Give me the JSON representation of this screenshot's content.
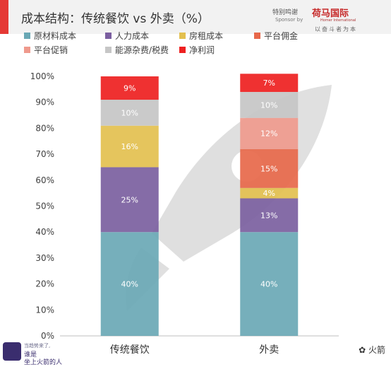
{
  "header": {
    "title": "成本结构：传统餐饮 vs 外卖（%）",
    "sponsor_text": "特别鸣谢",
    "sponsor_sub": "Sponsor by",
    "sponsor_logo": "荷马国际",
    "sponsor_logo_sub": "Homer International",
    "sponsor_tag": "以奋斗者为本"
  },
  "legend": [
    {
      "label": "原材料成本",
      "color": "#6aa8b5"
    },
    {
      "label": "人力成本",
      "color": "#7b5fa0"
    },
    {
      "label": "房租成本",
      "color": "#e3c04f"
    },
    {
      "label": "平台佣金",
      "color": "#e7684a"
    },
    {
      "label": "平台促销",
      "color": "#ef9a8d"
    },
    {
      "label": "能源杂费/税费",
      "color": "#c6c6c6"
    },
    {
      "label": "净利润",
      "color": "#ee2020"
    }
  ],
  "chart_data": {
    "type": "bar",
    "stacked": true,
    "title": "成本结构：传统餐饮 vs 外卖（%）",
    "categories": [
      "传统餐饮",
      "外卖"
    ],
    "ylim": [
      0,
      100
    ],
    "yticks": [
      "0%",
      "10%",
      "20%",
      "30%",
      "40%",
      "50%",
      "60%",
      "70%",
      "80%",
      "90%",
      "100%"
    ],
    "series": [
      {
        "name": "原材料成本",
        "color": "#6aa8b5",
        "values": [
          40,
          40
        ],
        "labels": [
          "40%",
          "40%"
        ]
      },
      {
        "name": "人力成本",
        "color": "#7b5fa0",
        "values": [
          25,
          13
        ],
        "labels": [
          "25%",
          "13%"
        ]
      },
      {
        "name": "房租成本",
        "color": "#e3c04f",
        "values": [
          16,
          4
        ],
        "labels": [
          "16%",
          "4%"
        ]
      },
      {
        "name": "平台佣金",
        "color": "#e7684a",
        "values": [
          0,
          15
        ],
        "labels": [
          "",
          "15%"
        ]
      },
      {
        "name": "平台促销",
        "color": "#ef9a8d",
        "values": [
          0,
          12
        ],
        "labels": [
          "",
          "12%"
        ]
      },
      {
        "name": "能源杂费/税费",
        "color": "#c6c6c6",
        "values": [
          10,
          10
        ],
        "labels": [
          "10%",
          "10%"
        ]
      },
      {
        "name": "净利润",
        "color": "#ee2020",
        "values": [
          9,
          7
        ],
        "labels": [
          "9%",
          "7%"
        ]
      }
    ],
    "legend_position": "top",
    "grid": false
  },
  "watermark": {
    "left_line1": "当趋势来了,",
    "left_line2": "谁是",
    "left_line3": "坐上火箭的人",
    "right": "火箭"
  }
}
